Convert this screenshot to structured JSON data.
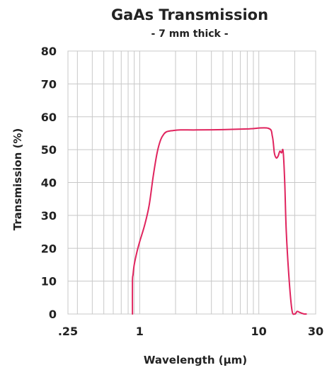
{
  "chart_data": {
    "type": "line",
    "title": "GaAs Transmission",
    "subtitle": "- 7 mm thick -",
    "xlabel": "Wavelength (μm)",
    "ylabel": "Transmission (%)",
    "x_scale": "log",
    "xlim": [
      0.25,
      30
    ],
    "ylim": [
      0,
      80
    ],
    "x_ticks": [
      {
        "value": 0.25,
        "label": ".25"
      },
      {
        "value": 1,
        "label": "1"
      },
      {
        "value": 10,
        "label": "10"
      },
      {
        "value": 30,
        "label": "30"
      }
    ],
    "y_ticks": [
      {
        "value": 0,
        "label": "0"
      },
      {
        "value": 10,
        "label": "10"
      },
      {
        "value": 20,
        "label": "20"
      },
      {
        "value": 30,
        "label": "30"
      },
      {
        "value": 40,
        "label": "40"
      },
      {
        "value": 50,
        "label": "50"
      },
      {
        "value": 60,
        "label": "60"
      },
      {
        "value": 70,
        "label": "70"
      },
      {
        "value": 80,
        "label": "80"
      }
    ],
    "grid": true,
    "line_color": "#e0245e",
    "series": [
      {
        "x": [
          0.87,
          0.87,
          0.88,
          0.9,
          0.95,
          1.0,
          1.1,
          1.2,
          1.3,
          1.4,
          1.5,
          1.6,
          1.7,
          1.9,
          2.2,
          3.0,
          5.0,
          8.0,
          12.0,
          13.0,
          13.5,
          14.0,
          14.5,
          15.0,
          15.5,
          16.0,
          16.5,
          17.0,
          18.0,
          19.0,
          20.0,
          20.5,
          21.0,
          22.0,
          23.0,
          24.0,
          25.0
        ],
        "y": [
          0,
          10,
          12,
          15,
          19,
          22,
          27,
          33,
          42,
          49,
          53,
          54.8,
          55.5,
          55.8,
          56,
          56,
          56.1,
          56.3,
          56.5,
          54,
          49,
          47.5,
          48,
          49.5,
          49,
          49.5,
          40,
          25,
          10,
          1,
          0,
          0.3,
          0.8,
          0.5,
          0.2,
          0,
          0
        ]
      }
    ]
  }
}
